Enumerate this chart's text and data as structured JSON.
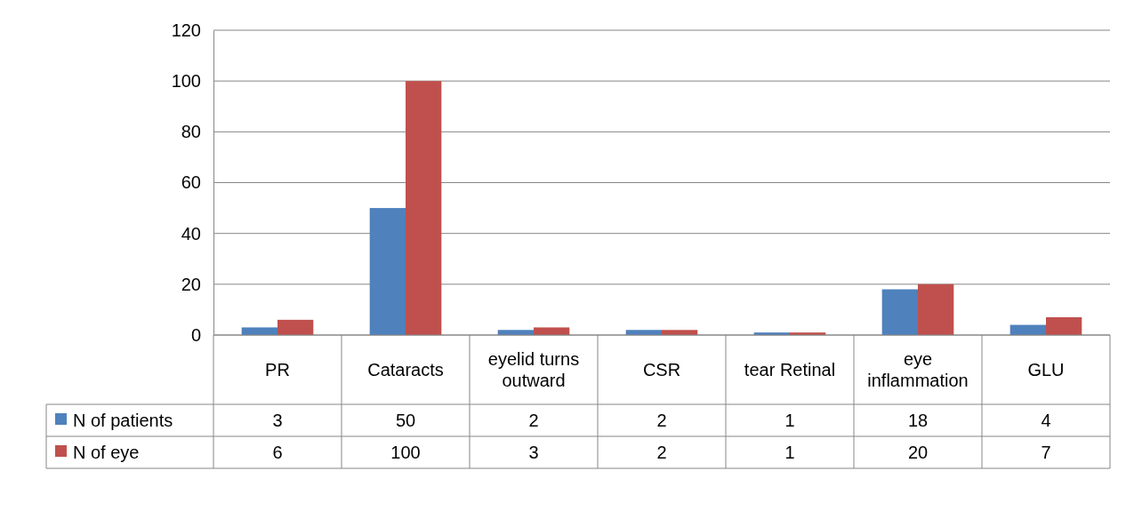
{
  "chart_data": {
    "type": "bar",
    "categories": [
      "PR",
      "Cataracts",
      "eyelid turns outward",
      "CSR",
      "tear Retinal",
      "eye inflammation",
      "GLU"
    ],
    "series": [
      {
        "name": "N of patients",
        "color": "#4f81bd",
        "values": [
          3,
          50,
          2,
          2,
          1,
          18,
          4
        ]
      },
      {
        "name": "N of eye",
        "color": "#c0504d",
        "values": [
          6,
          100,
          3,
          2,
          1,
          20,
          7
        ]
      }
    ],
    "ylim": [
      0,
      120
    ],
    "yticks": [
      0,
      20,
      40,
      60,
      80,
      100,
      120
    ],
    "grid": "y",
    "legend": "bottom",
    "data_labels": true
  }
}
